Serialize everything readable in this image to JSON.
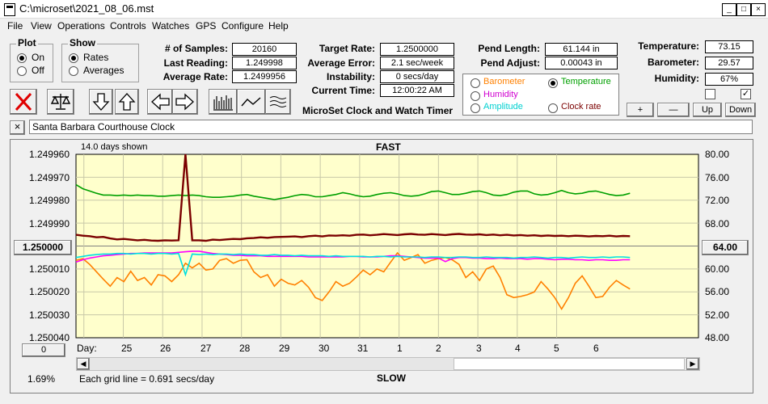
{
  "window": {
    "title": "C:\\microset\\2021_08_06.mst"
  },
  "menu": [
    "File",
    "View",
    "Operations",
    "Controls",
    "Watches",
    "GPS",
    "Configure",
    "Help"
  ],
  "plot_group": {
    "label": "Plot",
    "on": "On",
    "off": "Off",
    "selected": "On"
  },
  "show_group": {
    "label": "Show",
    "rates": "Rates",
    "averages": "Averages",
    "selected": "Rates"
  },
  "stats": {
    "samples_label": "# of Samples:",
    "samples": "20160",
    "last_label": "Last Reading:",
    "last": "1.249998",
    "avg_rate_label": "Average Rate:",
    "avg_rate": "1.2499956"
  },
  "target": {
    "rate_label": "Target Rate:",
    "rate": "1.2500000",
    "error_label": "Average Error:",
    "error": "2.1 sec/week",
    "instab_label": "Instability:",
    "instab": "0 secs/day",
    "time_label": "Current Time:",
    "time": "12:00:22 AM"
  },
  "app_caption": "MicroSet Clock and Watch Timer",
  "pend": {
    "length_label": "Pend Length:",
    "length": "61.144 in",
    "adjust_label": "Pend Adjust:",
    "adjust": "0.00043 in"
  },
  "right_axis_options": {
    "barometer": "Barometer",
    "temperature": "Temperature",
    "humidity": "Humidity",
    "amplitude": "Amplitude",
    "clock_rate": "Clock rate",
    "selected": "Temperature"
  },
  "env": {
    "temp_label": "Temperature:",
    "temp": "73.15",
    "baro_label": "Barometer:",
    "baro": "29.57",
    "hum_label": "Humidity:",
    "hum": "67%",
    "check_left": false,
    "check_right": true
  },
  "scale_buttons": {
    "plus": "+",
    "minus": "—",
    "up": "Up",
    "down": "Down"
  },
  "watch_name": "Santa Barbara Courthouse Clock",
  "close_x": "×",
  "chart_header": {
    "days_shown": "14.0 days shown",
    "fast": "FAST",
    "slow": "SLOW"
  },
  "center_button": "1.250000",
  "right_center_button": "64.00",
  "zero_button": "0",
  "percent": "1.69%",
  "grid_note": "Each grid line = 0.691 secs/day",
  "day_prefix": "Day:",
  "colors": {
    "plot_bg": "#ffffcc",
    "rate": "#7b0000",
    "temperature": "#00a000",
    "barometer": "#ff8000",
    "humidity": "#ff00ff",
    "amplitude": "#00e0e0",
    "clock_rate": "#7b0000",
    "stop_red": "#e00000"
  },
  "chart_data": {
    "type": "line",
    "x_axis": {
      "label": "Day:",
      "ticks": [
        "25",
        "26",
        "27",
        "28",
        "29",
        "30",
        "31",
        "1",
        "2",
        "3",
        "4",
        "5",
        "6"
      ]
    },
    "left_axis": {
      "ticks": [
        "1.249960",
        "1.249970",
        "1.249980",
        "1.249990",
        "1.250000",
        "1.250010",
        "1.250020",
        "1.250030",
        "1.250040"
      ],
      "range": [
        1.24996,
        1.25004
      ],
      "inverted": true
    },
    "right_axis": {
      "ticks": [
        "80.00",
        "76.00",
        "72.00",
        "68.00",
        "64.00",
        "60.00",
        "56.00",
        "52.00",
        "48.00"
      ],
      "range": [
        48,
        80
      ]
    },
    "series": [
      {
        "name": "Temperature",
        "axis": "right",
        "values": [
          74.7,
          74.0,
          73.6,
          73.2,
          72.9,
          72.9,
          72.8,
          72.9,
          72.8,
          72.9,
          72.8,
          72.8,
          72.7,
          72.7,
          72.8,
          72.9,
          72.8,
          72.9,
          72.8,
          72.6,
          72.5,
          72.5,
          72.6,
          72.7,
          72.9,
          73.0,
          72.7,
          72.5,
          72.3,
          72.1,
          72.3,
          72.5,
          72.8,
          73.0,
          72.9,
          72.6,
          72.6,
          72.8,
          73.0,
          73.3,
          73.1,
          72.8,
          72.6,
          72.7,
          73.0,
          73.2,
          73.3,
          73.1,
          72.8,
          72.7,
          72.8,
          73.1,
          73.5,
          73.6,
          73.3,
          73.0,
          73.0,
          73.2,
          73.5,
          73.6,
          73.3,
          72.9,
          72.8,
          73.0,
          73.4,
          73.6,
          73.6,
          73.1,
          72.9,
          73.0,
          73.3,
          73.7,
          73.3,
          73.1,
          73.2,
          73.5,
          73.6,
          73.3,
          73.0,
          72.8,
          72.9,
          73.2
        ]
      },
      {
        "name": "Barometer",
        "axis": "right",
        "values": [
          61.5,
          61.8,
          60.8,
          59.5,
          58.2,
          57.0,
          58.5,
          57.8,
          59.6,
          58.0,
          58.5,
          57.2,
          59.0,
          58.8,
          57.8,
          59.0,
          61.0,
          60.2,
          61.0,
          59.8,
          60.0,
          61.5,
          61.8,
          61.0,
          61.5,
          61.6,
          59.5,
          58.5,
          59.0,
          57.0,
          58.2,
          57.5,
          57.2,
          58.0,
          56.8,
          55.0,
          54.5,
          56.0,
          57.8,
          57.0,
          57.5,
          58.6,
          59.8,
          59.0,
          60.0,
          59.5,
          61.2,
          62.8,
          61.5,
          62.0,
          62.5,
          61.0,
          61.5,
          61.8,
          62.0,
          61.6,
          60.8,
          58.5,
          59.5,
          58.0,
          60.0,
          60.5,
          58.5,
          55.5,
          55.0,
          55.2,
          55.5,
          56.0,
          57.8,
          56.5,
          55.0,
          53.0,
          55.0,
          57.5,
          58.8,
          57.0,
          55.0,
          55.2,
          56.8,
          58.0,
          57.2,
          56.5
        ]
      },
      {
        "name": "Humidity",
        "axis": "right",
        "values": [
          61.2,
          61.6,
          61.9,
          62.1,
          62.3,
          62.4,
          62.5,
          62.6,
          62.7,
          62.7,
          62.8,
          62.8,
          62.8,
          62.8,
          62.8,
          62.9,
          63.0,
          63.1,
          63.1,
          62.9,
          62.7,
          62.6,
          62.5,
          62.4,
          62.4,
          62.3,
          62.3,
          62.3,
          62.2,
          62.2,
          62.2,
          62.2,
          62.2,
          62.2,
          62.1,
          62.1,
          62.1,
          62.1,
          62.1,
          62.1,
          62.2,
          62.2,
          62.1,
          62.1,
          62.1,
          62.2,
          62.3,
          62.3,
          62.2,
          62.1,
          62.0,
          61.9,
          61.9,
          61.9,
          61.3,
          61.8,
          62.0,
          62.0,
          61.9,
          61.9,
          61.8,
          61.8,
          61.9,
          61.8,
          61.8,
          61.8,
          61.7,
          61.8,
          61.8,
          61.7,
          61.6,
          61.7,
          61.7,
          61.6,
          61.6,
          61.5,
          61.6,
          61.6,
          61.5,
          61.5,
          61.6,
          61.6
        ]
      },
      {
        "name": "Amplitude",
        "axis": "right",
        "values": [
          62.0,
          62.2,
          62.4,
          62.5,
          62.6,
          62.6,
          62.7,
          62.7,
          62.6,
          62.7,
          62.7,
          62.6,
          62.7,
          62.7,
          62.6,
          62.7,
          59.0,
          62.6,
          62.5,
          62.6,
          62.5,
          62.6,
          62.6,
          62.5,
          62.6,
          62.5,
          62.5,
          62.4,
          62.4,
          62.5,
          62.4,
          62.4,
          62.3,
          62.4,
          62.3,
          62.3,
          62.3,
          62.2,
          62.3,
          62.2,
          62.2,
          62.2,
          62.2,
          62.1,
          62.2,
          62.2,
          62.1,
          62.2,
          62.1,
          62.1,
          62.1,
          62.0,
          62.1,
          62.1,
          62.0,
          62.0,
          62.1,
          62.1,
          62.0,
          62.0,
          62.1,
          62.0,
          62.0,
          62.0,
          61.9,
          62.0,
          62.0,
          62.1,
          62.0,
          61.9,
          62.0,
          62.0,
          61.9,
          62.0,
          62.1,
          62.0,
          62.0,
          62.1,
          62.0,
          62.1,
          62.1,
          62.0
        ]
      },
      {
        "name": "Clock rate",
        "axis": "left",
        "values": [
          1.2499951,
          1.2499955,
          1.2499957,
          1.2499962,
          1.249996,
          1.2499967,
          1.2499971,
          1.2499969,
          1.2499972,
          1.2499975,
          1.2499973,
          1.2499976,
          1.2499977,
          1.2499975,
          1.2499976,
          1.2499975,
          1.24996,
          1.2499975,
          1.2499975,
          1.2499977,
          1.2499972,
          1.2499974,
          1.2499971,
          1.2499969,
          1.249997,
          1.2499966,
          1.2499965,
          1.2499962,
          1.2499964,
          1.2499961,
          1.249996,
          1.2499959,
          1.2499958,
          1.2499961,
          1.2499957,
          1.2499955,
          1.2499958,
          1.2499954,
          1.2499955,
          1.2499953,
          1.2499955,
          1.2499951,
          1.249995,
          1.2499953,
          1.2499951,
          1.2499948,
          1.249995,
          1.2499952,
          1.2499949,
          1.2499947,
          1.249995,
          1.2499951,
          1.2499948,
          1.249995,
          1.2499952,
          1.2499949,
          1.2499947,
          1.249995,
          1.2499951,
          1.2499949,
          1.2499952,
          1.249995,
          1.2499953,
          1.2499951,
          1.2499954,
          1.2499952,
          1.2499955,
          1.2499953,
          1.2499956,
          1.2499954,
          1.2499956,
          1.2499955,
          1.2499957,
          1.2499955,
          1.2499956,
          1.2499958,
          1.2499956,
          1.2499957,
          1.2499955,
          1.2499958,
          1.2499956,
          1.2499957
        ]
      }
    ]
  }
}
